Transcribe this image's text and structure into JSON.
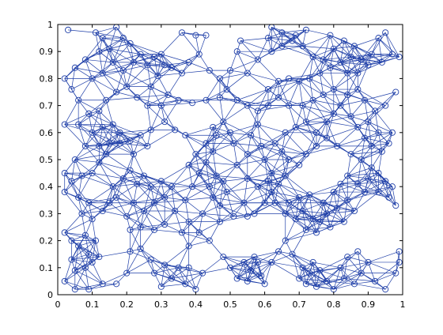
{
  "colors": {
    "background": "#ffffff",
    "axes": "#000000",
    "marker": "#1f3fa8",
    "edge": "#1f3fa8"
  },
  "chart_data": {
    "type": "scatter",
    "subtype": "random geometric graph (nodes with connecting edges)",
    "title": "",
    "xlabel": "",
    "ylabel": "",
    "xlim": [
      0,
      1
    ],
    "ylim": [
      0,
      1
    ],
    "grid": false,
    "legend": "none",
    "marker": "open circle",
    "connect_radius": 0.1,
    "x_ticks": [
      "0",
      "0.1",
      "0.2",
      "0.3",
      "0.4",
      "0.5",
      "0.6",
      "0.7",
      "0.8",
      "0.9",
      "1"
    ],
    "y_ticks": [
      "0",
      "0.1",
      "0.2",
      "0.3",
      "0.4",
      "0.5",
      "0.6",
      "0.7",
      "0.8",
      "0.9",
      "1"
    ],
    "nodes": [
      [
        0.03,
        0.98
      ],
      [
        0.11,
        0.97
      ],
      [
        0.13,
        0.95
      ],
      [
        0.15,
        0.91
      ],
      [
        0.17,
        0.99
      ],
      [
        0.19,
        0.95
      ],
      [
        0.21,
        0.93
      ],
      [
        0.12,
        0.9
      ],
      [
        0.08,
        0.87
      ],
      [
        0.05,
        0.84
      ],
      [
        0.02,
        0.8
      ],
      [
        0.04,
        0.76
      ],
      [
        0.06,
        0.72
      ],
      [
        0.1,
        0.8
      ],
      [
        0.13,
        0.82
      ],
      [
        0.16,
        0.86
      ],
      [
        0.19,
        0.83
      ],
      [
        0.22,
        0.86
      ],
      [
        0.24,
        0.89
      ],
      [
        0.26,
        0.85
      ],
      [
        0.28,
        0.88
      ],
      [
        0.3,
        0.89
      ],
      [
        0.31,
        0.85
      ],
      [
        0.29,
        0.81
      ],
      [
        0.27,
        0.77
      ],
      [
        0.33,
        0.84
      ],
      [
        0.36,
        0.82
      ],
      [
        0.38,
        0.86
      ],
      [
        0.36,
        0.97
      ],
      [
        0.4,
        0.96
      ],
      [
        0.43,
        0.96
      ],
      [
        0.41,
        0.89
      ],
      [
        0.44,
        0.83
      ],
      [
        0.47,
        0.8
      ],
      [
        0.49,
        0.76
      ],
      [
        0.5,
        0.83
      ],
      [
        0.52,
        0.9
      ],
      [
        0.53,
        0.94
      ],
      [
        0.47,
        0.73
      ],
      [
        0.43,
        0.72
      ],
      [
        0.39,
        0.71
      ],
      [
        0.35,
        0.72
      ],
      [
        0.32,
        0.74
      ],
      [
        0.3,
        0.7
      ],
      [
        0.26,
        0.7
      ],
      [
        0.23,
        0.73
      ],
      [
        0.2,
        0.77
      ],
      [
        0.17,
        0.75
      ],
      [
        0.14,
        0.72
      ],
      [
        0.12,
        0.68
      ],
      [
        0.09,
        0.67
      ],
      [
        0.06,
        0.63
      ],
      [
        0.02,
        0.63
      ],
      [
        0.1,
        0.6
      ],
      [
        0.13,
        0.62
      ],
      [
        0.16,
        0.63
      ],
      [
        0.18,
        0.6
      ],
      [
        0.21,
        0.57
      ],
      [
        0.24,
        0.59
      ],
      [
        0.27,
        0.61
      ],
      [
        0.31,
        0.64
      ],
      [
        0.34,
        0.61
      ],
      [
        0.37,
        0.59
      ],
      [
        0.26,
        0.55
      ],
      [
        0.22,
        0.52
      ],
      [
        0.18,
        0.56
      ],
      [
        0.15,
        0.56
      ],
      [
        0.12,
        0.55
      ],
      [
        0.08,
        0.55
      ],
      [
        0.05,
        0.5
      ],
      [
        0.02,
        0.45
      ],
      [
        0.04,
        0.42
      ],
      [
        0.07,
        0.44
      ],
      [
        0.1,
        0.45
      ],
      [
        0.12,
        0.49
      ],
      [
        0.14,
        0.52
      ],
      [
        0.02,
        0.38
      ],
      [
        0.06,
        0.36
      ],
      [
        0.09,
        0.34
      ],
      [
        0.07,
        0.3
      ],
      [
        0.1,
        0.28
      ],
      [
        0.13,
        0.31
      ],
      [
        0.15,
        0.34
      ],
      [
        0.17,
        0.36
      ],
      [
        0.16,
        0.4
      ],
      [
        0.19,
        0.43
      ],
      [
        0.21,
        0.46
      ],
      [
        0.23,
        0.41
      ],
      [
        0.25,
        0.44
      ],
      [
        0.27,
        0.4
      ],
      [
        0.3,
        0.42
      ],
      [
        0.33,
        0.4
      ],
      [
        0.31,
        0.36
      ],
      [
        0.28,
        0.34
      ],
      [
        0.25,
        0.31
      ],
      [
        0.22,
        0.34
      ],
      [
        0.2,
        0.29
      ],
      [
        0.24,
        0.25
      ],
      [
        0.28,
        0.24
      ],
      [
        0.31,
        0.26
      ],
      [
        0.34,
        0.31
      ],
      [
        0.37,
        0.35
      ],
      [
        0.39,
        0.4
      ],
      [
        0.41,
        0.45
      ],
      [
        0.43,
        0.49
      ],
      [
        0.45,
        0.53
      ],
      [
        0.43,
        0.56
      ],
      [
        0.4,
        0.52
      ],
      [
        0.38,
        0.48
      ],
      [
        0.46,
        0.59
      ],
      [
        0.45,
        0.62
      ],
      [
        0.48,
        0.64
      ],
      [
        0.5,
        0.6
      ],
      [
        0.51,
        0.56
      ],
      [
        0.46,
        0.44
      ],
      [
        0.44,
        0.4
      ],
      [
        0.45,
        0.36
      ],
      [
        0.47,
        0.33
      ],
      [
        0.49,
        0.38
      ],
      [
        0.48,
        0.42
      ],
      [
        0.42,
        0.3
      ],
      [
        0.38,
        0.27
      ],
      [
        0.41,
        0.23
      ],
      [
        0.44,
        0.2
      ],
      [
        0.47,
        0.27
      ],
      [
        0.51,
        0.29
      ],
      [
        0.55,
        0.29
      ],
      [
        0.54,
        0.34
      ],
      [
        0.57,
        0.3
      ],
      [
        0.6,
        0.34
      ],
      [
        0.62,
        0.38
      ],
      [
        0.58,
        0.4
      ],
      [
        0.55,
        0.43
      ],
      [
        0.52,
        0.48
      ],
      [
        0.55,
        0.52
      ],
      [
        0.59,
        0.55
      ],
      [
        0.6,
        0.5
      ],
      [
        0.62,
        0.45
      ],
      [
        0.64,
        0.41
      ],
      [
        0.66,
        0.44
      ],
      [
        0.61,
        0.42
      ],
      [
        0.63,
        0.34
      ],
      [
        0.66,
        0.3
      ],
      [
        0.69,
        0.28
      ],
      [
        0.67,
        0.34
      ],
      [
        0.7,
        0.36
      ],
      [
        0.73,
        0.37
      ],
      [
        0.71,
        0.31
      ],
      [
        0.74,
        0.28
      ],
      [
        0.72,
        0.24
      ],
      [
        0.75,
        0.23
      ],
      [
        0.76,
        0.27
      ],
      [
        0.78,
        0.3
      ],
      [
        0.81,
        0.32
      ],
      [
        0.84,
        0.35
      ],
      [
        0.86,
        0.31
      ],
      [
        0.83,
        0.27
      ],
      [
        0.79,
        0.25
      ],
      [
        0.77,
        0.34
      ],
      [
        0.8,
        0.38
      ],
      [
        0.82,
        0.41
      ],
      [
        0.84,
        0.44
      ],
      [
        0.87,
        0.41
      ],
      [
        0.89,
        0.38
      ],
      [
        0.9,
        0.43
      ],
      [
        0.93,
        0.45
      ],
      [
        0.95,
        0.42
      ],
      [
        0.97,
        0.4
      ],
      [
        0.96,
        0.36
      ],
      [
        0.98,
        0.33
      ],
      [
        0.93,
        0.38
      ],
      [
        0.91,
        0.47
      ],
      [
        0.88,
        0.5
      ],
      [
        0.85,
        0.52
      ],
      [
        0.81,
        0.55
      ],
      [
        0.78,
        0.58
      ],
      [
        0.75,
        0.55
      ],
      [
        0.72,
        0.52
      ],
      [
        0.7,
        0.48
      ],
      [
        0.67,
        0.5
      ],
      [
        0.65,
        0.53
      ],
      [
        0.63,
        0.56
      ],
      [
        0.66,
        0.6
      ],
      [
        0.69,
        0.62
      ],
      [
        0.72,
        0.64
      ],
      [
        0.75,
        0.6
      ],
      [
        0.78,
        0.64
      ],
      [
        0.8,
        0.67
      ],
      [
        0.82,
        0.7
      ],
      [
        0.85,
        0.66
      ],
      [
        0.87,
        0.62
      ],
      [
        0.89,
        0.58
      ],
      [
        0.91,
        0.55
      ],
      [
        0.94,
        0.53
      ],
      [
        0.96,
        0.56
      ],
      [
        0.93,
        0.6
      ],
      [
        0.9,
        0.64
      ],
      [
        0.92,
        0.68
      ],
      [
        0.89,
        0.72
      ],
      [
        0.87,
        0.76
      ],
      [
        0.84,
        0.74
      ],
      [
        0.8,
        0.76
      ],
      [
        0.77,
        0.74
      ],
      [
        0.74,
        0.72
      ],
      [
        0.71,
        0.7
      ],
      [
        0.67,
        0.7
      ],
      [
        0.64,
        0.73
      ],
      [
        0.61,
        0.7
      ],
      [
        0.58,
        0.68
      ],
      [
        0.55,
        0.7
      ],
      [
        0.52,
        0.72
      ],
      [
        0.58,
        0.63
      ],
      [
        0.56,
        0.59
      ],
      [
        0.61,
        0.76
      ],
      [
        0.64,
        0.79
      ],
      [
        0.67,
        0.8
      ],
      [
        0.7,
        0.79
      ],
      [
        0.73,
        0.8
      ],
      [
        0.76,
        0.82
      ],
      [
        0.79,
        0.84
      ],
      [
        0.82,
        0.86
      ],
      [
        0.85,
        0.88
      ],
      [
        0.88,
        0.87
      ],
      [
        0.9,
        0.85
      ],
      [
        0.87,
        0.82
      ],
      [
        0.84,
        0.82
      ],
      [
        0.91,
        0.89
      ],
      [
        0.94,
        0.86
      ],
      [
        0.97,
        0.89
      ],
      [
        0.99,
        0.88
      ],
      [
        0.93,
        0.95
      ],
      [
        0.95,
        0.97
      ],
      [
        0.86,
        0.92
      ],
      [
        0.83,
        0.94
      ],
      [
        0.8,
        0.91
      ],
      [
        0.77,
        0.87
      ],
      [
        0.74,
        0.88
      ],
      [
        0.71,
        0.92
      ],
      [
        0.68,
        0.94
      ],
      [
        0.65,
        0.97
      ],
      [
        0.62,
        0.99
      ],
      [
        0.61,
        0.95
      ],
      [
        0.65,
        0.92
      ],
      [
        0.69,
        0.96
      ],
      [
        0.72,
        0.98
      ],
      [
        0.79,
        0.96
      ],
      [
        0.97,
        0.6
      ],
      [
        0.98,
        0.75
      ],
      [
        0.95,
        0.7
      ],
      [
        0.02,
        0.23
      ],
      [
        0.04,
        0.2
      ],
      [
        0.06,
        0.18
      ],
      [
        0.09,
        0.15
      ],
      [
        0.12,
        0.14
      ],
      [
        0.11,
        0.2
      ],
      [
        0.08,
        0.22
      ],
      [
        0.04,
        0.13
      ],
      [
        0.05,
        0.09
      ],
      [
        0.08,
        0.1
      ],
      [
        0.1,
        0.12
      ],
      [
        0.02,
        0.05
      ],
      [
        0.05,
        0.02
      ],
      [
        0.09,
        0.02
      ],
      [
        0.13,
        0.04
      ],
      [
        0.17,
        0.04
      ],
      [
        0.2,
        0.08
      ],
      [
        0.21,
        0.16
      ],
      [
        0.21,
        0.24
      ],
      [
        0.24,
        0.17
      ],
      [
        0.27,
        0.13
      ],
      [
        0.28,
        0.08
      ],
      [
        0.31,
        0.11
      ],
      [
        0.33,
        0.06
      ],
      [
        0.3,
        0.03
      ],
      [
        0.35,
        0.1
      ],
      [
        0.37,
        0.04
      ],
      [
        0.4,
        0.02
      ],
      [
        0.38,
        0.1
      ],
      [
        0.42,
        0.08
      ],
      [
        0.38,
        0.18
      ],
      [
        0.36,
        0.23
      ],
      [
        0.48,
        0.14
      ],
      [
        0.5,
        0.1
      ],
      [
        0.52,
        0.06
      ],
      [
        0.55,
        0.05
      ],
      [
        0.56,
        0.09
      ],
      [
        0.58,
        0.12
      ],
      [
        0.59,
        0.07
      ],
      [
        0.6,
        0.04
      ],
      [
        0.57,
        0.14
      ],
      [
        0.54,
        0.12
      ],
      [
        0.62,
        0.12
      ],
      [
        0.64,
        0.16
      ],
      [
        0.66,
        0.2
      ],
      [
        0.68,
        0.15
      ],
      [
        0.7,
        0.06
      ],
      [
        0.71,
        0.1
      ],
      [
        0.72,
        0.04
      ],
      [
        0.73,
        0.08
      ],
      [
        0.74,
        0.12
      ],
      [
        0.75,
        0.03
      ],
      [
        0.76,
        0.09
      ],
      [
        0.78,
        0.05
      ],
      [
        0.8,
        0.02
      ],
      [
        0.83,
        0.06
      ],
      [
        0.86,
        0.04
      ],
      [
        0.88,
        0.08
      ],
      [
        0.9,
        0.12
      ],
      [
        0.87,
        0.16
      ],
      [
        0.84,
        0.14
      ],
      [
        0.82,
        0.1
      ],
      [
        0.92,
        0.05
      ],
      [
        0.95,
        0.02
      ],
      [
        0.98,
        0.08
      ],
      [
        0.99,
        0.12
      ],
      [
        0.99,
        0.16
      ],
      [
        0.62,
        0.9
      ],
      [
        0.58,
        0.87
      ],
      [
        0.55,
        0.82
      ]
    ]
  }
}
